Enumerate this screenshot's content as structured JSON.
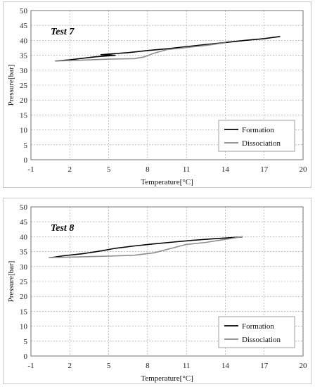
{
  "chart_data": [
    {
      "type": "line",
      "panel_label": "Test 7",
      "xlabel": "Temperature[°C]",
      "ylabel": "Pressure[bar]",
      "xlim": [
        -1,
        20
      ],
      "ylim": [
        0,
        50
      ],
      "xticks": [
        -1,
        2,
        5,
        8,
        11,
        14,
        17,
        20
      ],
      "yticks": [
        0,
        5,
        10,
        15,
        20,
        25,
        30,
        35,
        40,
        45,
        50
      ],
      "grid": true,
      "legend_position": "bottom-right",
      "series": [
        {
          "name": "Formation",
          "color": "#000000",
          "points": [
            [
              0.9,
              33.1
            ],
            [
              2.0,
              33.5
            ],
            [
              3.0,
              34.0
            ],
            [
              4.0,
              34.5
            ],
            [
              5.5,
              35.0
            ],
            [
              4.4,
              35.2
            ],
            [
              5.2,
              35.5
            ],
            [
              6.5,
              35.9
            ],
            [
              8.0,
              36.6
            ],
            [
              9.5,
              37.2
            ],
            [
              11.0,
              37.9
            ],
            [
              12.5,
              38.6
            ],
            [
              14.0,
              39.3
            ],
            [
              15.5,
              40.0
            ],
            [
              17.0,
              40.6
            ],
            [
              18.2,
              41.3
            ]
          ]
        },
        {
          "name": "Dissociation",
          "color": "#8c8c8c",
          "points": [
            [
              0.9,
              33.1
            ],
            [
              3.0,
              33.4
            ],
            [
              5.0,
              33.7
            ],
            [
              7.0,
              33.9
            ],
            [
              7.7,
              34.4
            ],
            [
              8.5,
              35.7
            ],
            [
              9.5,
              36.9
            ],
            [
              11.0,
              37.6
            ],
            [
              12.5,
              38.3
            ],
            [
              14.0,
              39.2
            ]
          ]
        }
      ]
    },
    {
      "type": "line",
      "panel_label": "Test 8",
      "xlabel": "Temperature[°C]",
      "ylabel": "Pressure[bar]",
      "xlim": [
        -1,
        20
      ],
      "ylim": [
        0,
        50
      ],
      "xticks": [
        -1,
        2,
        5,
        8,
        11,
        14,
        17,
        20
      ],
      "yticks": [
        0,
        5,
        10,
        15,
        20,
        25,
        30,
        35,
        40,
        45,
        50
      ],
      "grid": true,
      "legend_position": "bottom-right",
      "series": [
        {
          "name": "Formation",
          "color": "#000000",
          "points": [
            [
              0.6,
              33.0
            ],
            [
              1.5,
              33.6
            ],
            [
              3.0,
              34.3
            ],
            [
              4.5,
              35.3
            ],
            [
              5.5,
              36.1
            ],
            [
              7.0,
              36.9
            ],
            [
              8.5,
              37.6
            ],
            [
              10.0,
              38.2
            ],
            [
              11.5,
              38.8
            ],
            [
              13.0,
              39.3
            ],
            [
              14.5,
              39.7
            ],
            [
              15.3,
              39.9
            ]
          ]
        },
        {
          "name": "Dissociation",
          "color": "#8c8c8c",
          "points": [
            [
              0.4,
              33.0
            ],
            [
              2.5,
              33.2
            ],
            [
              5.0,
              33.5
            ],
            [
              7.0,
              33.8
            ],
            [
              8.5,
              34.6
            ],
            [
              10.0,
              36.3
            ],
            [
              11.0,
              37.4
            ],
            [
              12.5,
              38.1
            ],
            [
              14.0,
              39.1
            ],
            [
              15.3,
              40.0
            ]
          ]
        }
      ]
    }
  ]
}
